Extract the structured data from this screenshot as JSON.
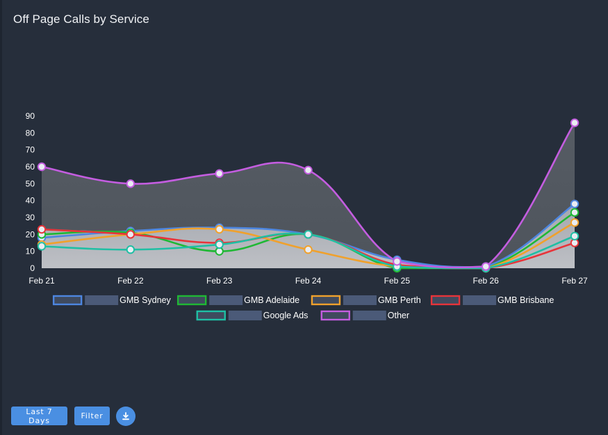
{
  "header": {
    "title": "Off Page Calls by Service"
  },
  "controls": {
    "range_label": "Last 7 Days",
    "filter_label": "Filter",
    "download_icon": "download-icon"
  },
  "colors": {
    "background": "#262e3b",
    "area_dark": "#555b63",
    "area_light": "#b8bac0"
  },
  "chart_data": {
    "type": "line",
    "title": "Off Page Calls by Service",
    "categories": [
      "Feb 21",
      "Feb 22",
      "Feb 23",
      "Feb 24",
      "Feb 25",
      "Feb 26",
      "Feb 27"
    ],
    "ylim": [
      0,
      90
    ],
    "yticks": [
      0,
      10,
      20,
      30,
      40,
      50,
      60,
      70,
      80,
      90
    ],
    "grid": false,
    "legend_position": "bottom",
    "series": [
      {
        "name": "GMB Sydney",
        "color": "#4d86e0",
        "values": [
          18,
          22,
          24,
          20,
          5,
          1,
          38
        ]
      },
      {
        "name": "GMB Adelaide",
        "color": "#1fb834",
        "values": [
          20,
          21,
          10,
          20,
          0,
          0,
          33
        ]
      },
      {
        "name": "GMB Perth",
        "color": "#f0a12c",
        "values": [
          14,
          20,
          23,
          11,
          1,
          0,
          27
        ]
      },
      {
        "name": "GMB Brisbane",
        "color": "#e8343a",
        "values": [
          23,
          20,
          15,
          20,
          2,
          0,
          15
        ]
      },
      {
        "name": "Google Ads",
        "color": "#1fbfa4",
        "values": [
          13,
          11,
          14,
          20,
          1,
          0,
          19
        ]
      },
      {
        "name": "Other",
        "color": "#c45de0",
        "values": [
          60,
          50,
          56,
          58,
          4,
          1,
          86
        ]
      }
    ]
  }
}
